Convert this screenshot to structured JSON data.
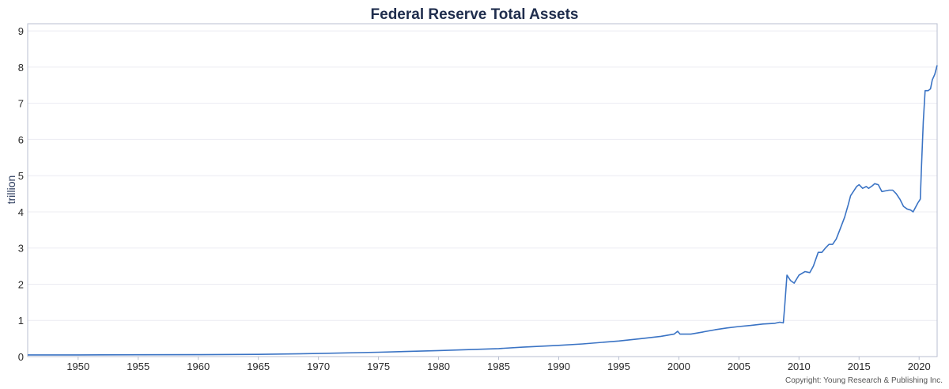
{
  "chart_data": {
    "type": "line",
    "title": "Federal Reserve Total Assets",
    "xlabel": "",
    "ylabel": "trillion",
    "xlim": [
      1945.8,
      2021.5
    ],
    "ylim": [
      0,
      9.2
    ],
    "x_ticks": [
      1950,
      1955,
      1960,
      1965,
      1970,
      1975,
      1980,
      1985,
      1990,
      1995,
      2000,
      2005,
      2010,
      2015,
      2020
    ],
    "y_ticks": [
      0,
      1,
      2,
      3,
      4,
      5,
      6,
      7,
      8,
      9
    ],
    "grid": "horizontal",
    "line_color": "#3a73c4",
    "series": [
      {
        "name": "",
        "points": [
          [
            1945.8,
            0.045
          ],
          [
            1950,
            0.046
          ],
          [
            1955,
            0.05
          ],
          [
            1960,
            0.053
          ],
          [
            1965,
            0.062
          ],
          [
            1970,
            0.085
          ],
          [
            1975,
            0.12
          ],
          [
            1980,
            0.165
          ],
          [
            1985,
            0.22
          ],
          [
            1987,
            0.26
          ],
          [
            1990,
            0.31
          ],
          [
            1992,
            0.35
          ],
          [
            1995,
            0.43
          ],
          [
            1997,
            0.5
          ],
          [
            1998.5,
            0.56
          ],
          [
            1999.6,
            0.62
          ],
          [
            1999.9,
            0.7
          ],
          [
            2000.1,
            0.62
          ],
          [
            2001,
            0.62
          ],
          [
            2002,
            0.68
          ],
          [
            2003,
            0.74
          ],
          [
            2004,
            0.79
          ],
          [
            2005,
            0.83
          ],
          [
            2006,
            0.86
          ],
          [
            2007,
            0.9
          ],
          [
            2008.0,
            0.92
          ],
          [
            2008.4,
            0.95
          ],
          [
            2008.7,
            0.93
          ],
          [
            2008.8,
            1.35
          ],
          [
            2009.0,
            2.25
          ],
          [
            2009.3,
            2.1
          ],
          [
            2009.6,
            2.03
          ],
          [
            2010.0,
            2.25
          ],
          [
            2010.5,
            2.35
          ],
          [
            2010.9,
            2.32
          ],
          [
            2011.2,
            2.5
          ],
          [
            2011.6,
            2.88
          ],
          [
            2011.9,
            2.88
          ],
          [
            2012.2,
            3.0
          ],
          [
            2012.5,
            3.1
          ],
          [
            2012.8,
            3.1
          ],
          [
            2013.1,
            3.25
          ],
          [
            2013.4,
            3.5
          ],
          [
            2013.8,
            3.85
          ],
          [
            2014.1,
            4.2
          ],
          [
            2014.3,
            4.45
          ],
          [
            2014.5,
            4.55
          ],
          [
            2014.8,
            4.7
          ],
          [
            2015.0,
            4.75
          ],
          [
            2015.3,
            4.65
          ],
          [
            2015.6,
            4.7
          ],
          [
            2015.8,
            4.65
          ],
          [
            2016.1,
            4.72
          ],
          [
            2016.3,
            4.78
          ],
          [
            2016.6,
            4.75
          ],
          [
            2016.9,
            4.56
          ],
          [
            2017.2,
            4.58
          ],
          [
            2017.5,
            4.6
          ],
          [
            2017.8,
            4.6
          ],
          [
            2018.1,
            4.5
          ],
          [
            2018.4,
            4.35
          ],
          [
            2018.7,
            4.15
          ],
          [
            2019.0,
            4.08
          ],
          [
            2019.3,
            4.05
          ],
          [
            2019.5,
            4.0
          ],
          [
            2019.9,
            4.25
          ],
          [
            2020.1,
            4.35
          ],
          [
            2020.2,
            5.3
          ],
          [
            2020.35,
            6.5
          ],
          [
            2020.5,
            7.35
          ],
          [
            2020.75,
            7.35
          ],
          [
            2020.95,
            7.4
          ],
          [
            2021.1,
            7.65
          ],
          [
            2021.3,
            7.8
          ],
          [
            2021.5,
            8.05
          ]
        ]
      }
    ],
    "annotations": [
      "Copyright: Young Research & Publishing Inc."
    ]
  }
}
